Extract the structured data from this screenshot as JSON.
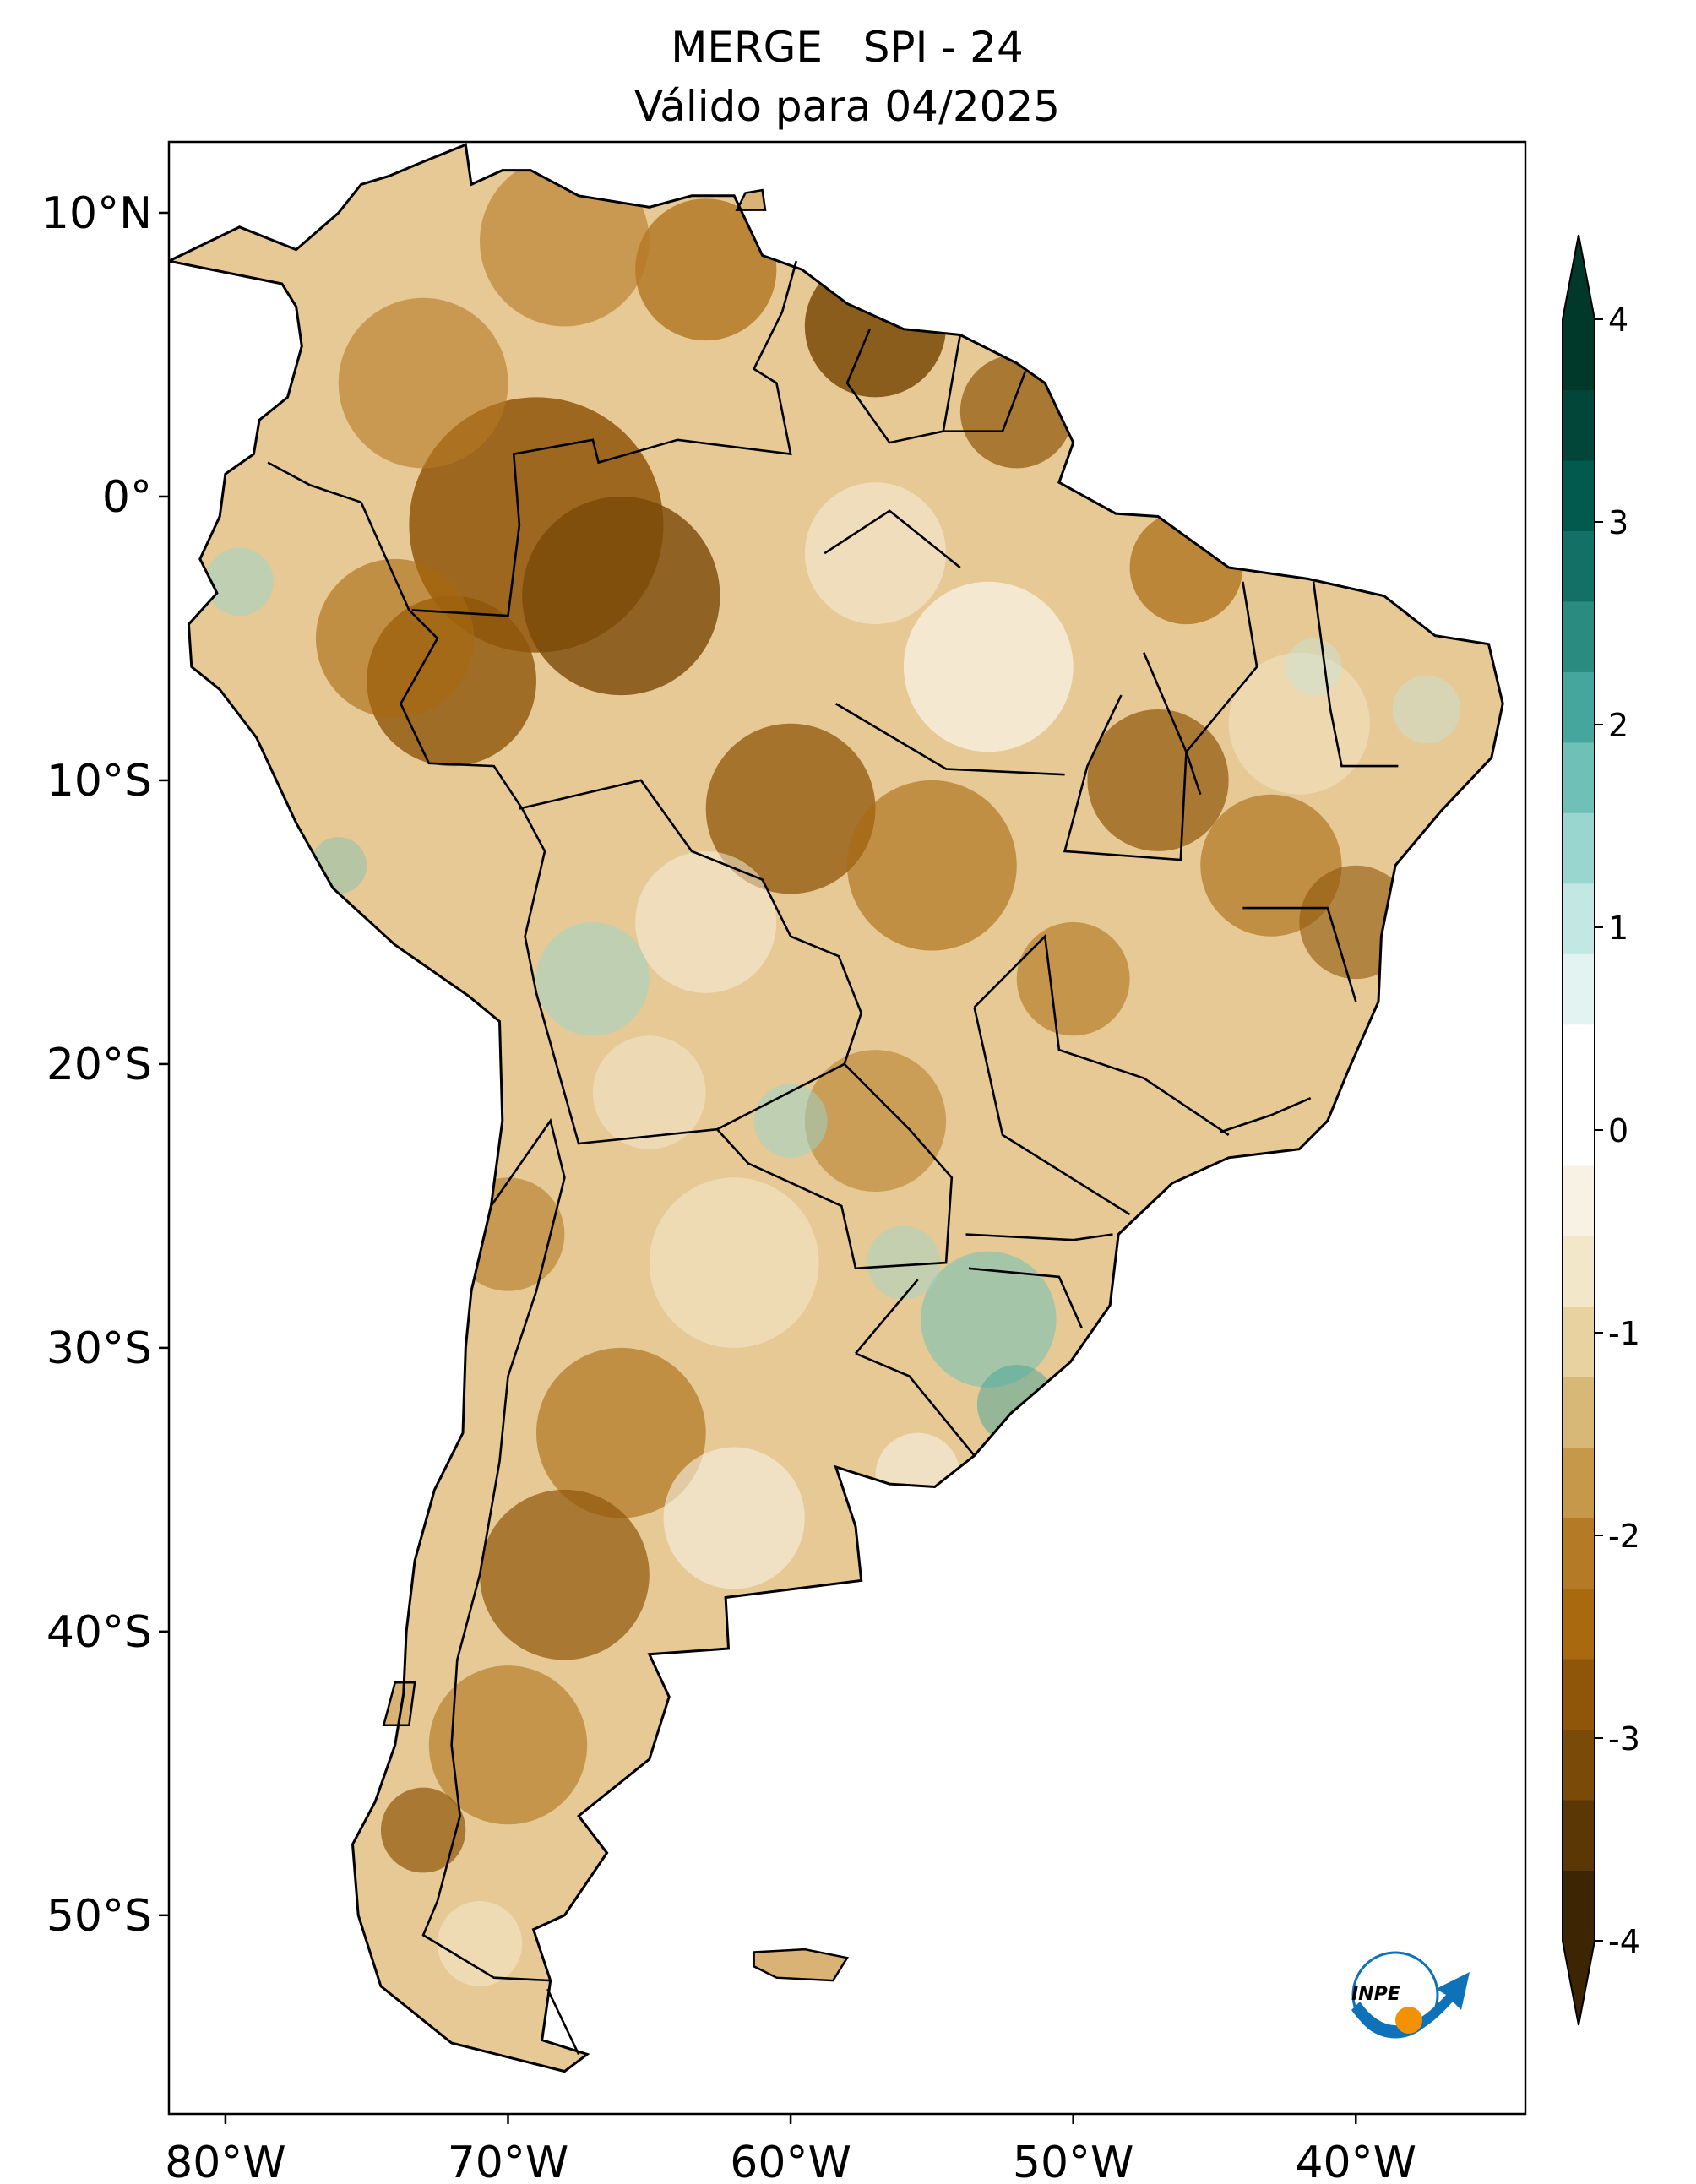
{
  "title": {
    "line1": "MERGE   SPI - 24",
    "line2": "Válido para 04/2025"
  },
  "map": {
    "region": "South America",
    "projection": "PlateCarree",
    "lon_range": [
      -82,
      -34
    ],
    "lat_range": [
      -57,
      12.5
    ],
    "lon_ticks": [
      {
        "value": -80,
        "label": "80°W"
      },
      {
        "value": -70,
        "label": "70°W"
      },
      {
        "value": -60,
        "label": "60°W"
      },
      {
        "value": -50,
        "label": "50°W"
      },
      {
        "value": -40,
        "label": "40°W"
      }
    ],
    "lat_ticks": [
      {
        "value": 10,
        "label": "10°N"
      },
      {
        "value": 0,
        "label": "0°"
      },
      {
        "value": -10,
        "label": "10°S"
      },
      {
        "value": -20,
        "label": "20°S"
      },
      {
        "value": -30,
        "label": "30°S"
      },
      {
        "value": -40,
        "label": "40°S"
      },
      {
        "value": -50,
        "label": "50°S"
      }
    ],
    "ocean_color": "#ffffff",
    "border_color": "#000000"
  },
  "colorbar": {
    "min": -4,
    "max": 4,
    "extend": "both",
    "ticks": [
      {
        "value": 4,
        "label": "4"
      },
      {
        "value": 3,
        "label": "3"
      },
      {
        "value": 2,
        "label": "2"
      },
      {
        "value": 1,
        "label": "1"
      },
      {
        "value": 0,
        "label": "0"
      },
      {
        "value": -1,
        "label": "-1"
      },
      {
        "value": -2,
        "label": "-2"
      },
      {
        "value": -3,
        "label": "-3"
      },
      {
        "value": -4,
        "label": "-4"
      }
    ],
    "colors": [
      "#3d2503",
      "#5a3705",
      "#7a4a08",
      "#8f560a",
      "#a8690f",
      "#b57a25",
      "#c5984a",
      "#d8b877",
      "#e8d2a0",
      "#f3e7c9",
      "#f8f2e4",
      "#ffffff",
      "#ffffff",
      "#e2f3f1",
      "#c3e8e4",
      "#98d6cf",
      "#6fc1b8",
      "#44a69c",
      "#2a8b80",
      "#137066",
      "#025a4e",
      "#014638",
      "#00382a"
    ]
  },
  "logo": {
    "text": "INPE",
    "primary_color": "#0f72b8",
    "accent_color": "#f39200"
  }
}
